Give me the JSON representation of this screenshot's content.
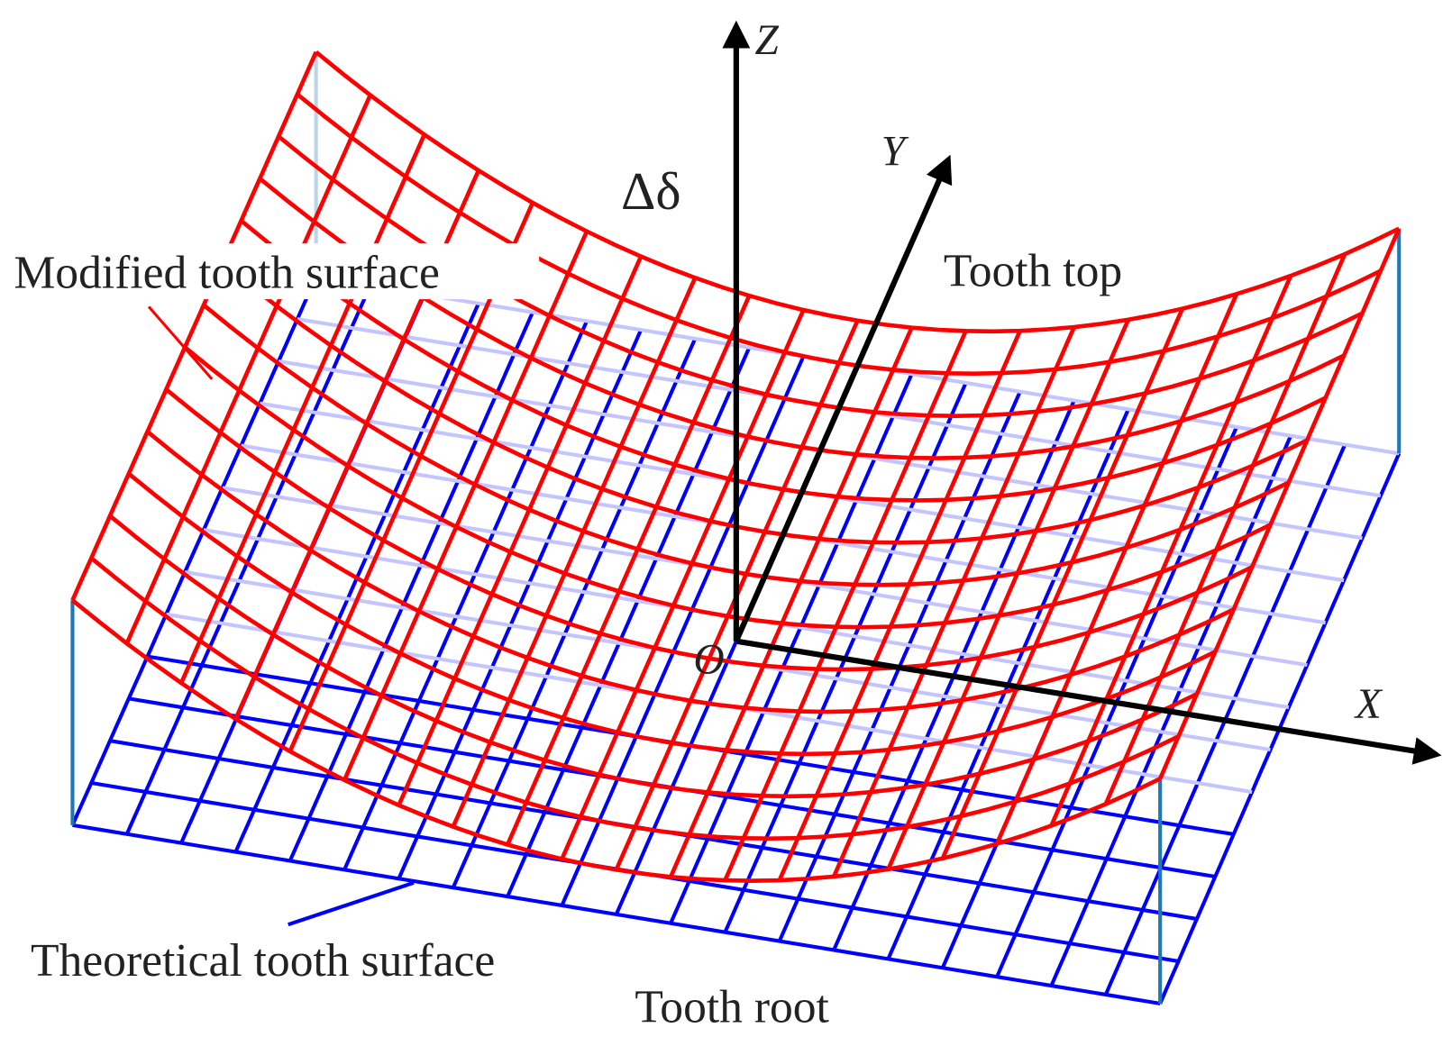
{
  "axes": {
    "z": "Z",
    "y": "Y",
    "x": "X",
    "origin": "O"
  },
  "delta": "Δδ",
  "annotations": {
    "modified": "Modified tooth surface",
    "theoretical": "Theoretical tooth surface",
    "tooth_top": "Tooth top",
    "tooth_root": "Tooth root"
  }
}
